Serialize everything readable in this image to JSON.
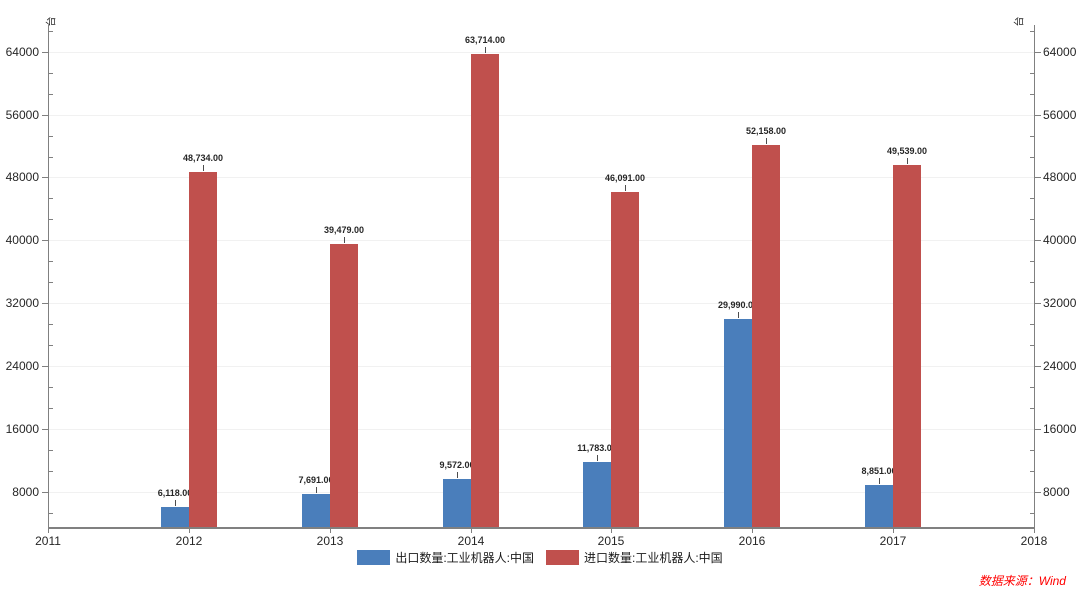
{
  "chart": {
    "unit_label_left": "台",
    "unit_label_right": "台",
    "source_note": "数据来源：Wind"
  },
  "legend": {
    "items": [
      {
        "label": "出口数量:工业机器人:中国",
        "color": "#4a7ebb"
      },
      {
        "label": "进口数量:工业机器人:中国",
        "color": "#c0504d"
      }
    ]
  },
  "chart_data": {
    "type": "bar",
    "categories": [
      "2012",
      "2013",
      "2014",
      "2015",
      "2016",
      "2017"
    ],
    "series": [
      {
        "name": "出口数量:工业机器人:中国",
        "color": "#4a7ebb",
        "values": [
          6118,
          7691,
          9572,
          11783,
          29990,
          8851
        ],
        "labels": [
          "6,118.00",
          "7,691.00",
          "9,572.00",
          "11,783.00",
          "29,990.00",
          "8,851.00"
        ]
      },
      {
        "name": "进口数量:工业机器人:中国",
        "color": "#c0504d",
        "values": [
          48734,
          39479,
          63714,
          46091,
          52158,
          49539
        ],
        "labels": [
          "48,734.00",
          "39,479.00",
          "63,714.00",
          "46,091.00",
          "52,158.00",
          "49,539.00"
        ]
      }
    ],
    "xlabel": "",
    "ylabel": "台",
    "x_axis": {
      "min": 2011,
      "max": 2018,
      "ticks": [
        "2011",
        "2012",
        "2013",
        "2014",
        "2015",
        "2016",
        "2017",
        "2018"
      ]
    },
    "y_axis": {
      "min": 3400,
      "max": 67400,
      "major_ticks": [
        8000,
        16000,
        24000,
        32000,
        40000,
        48000,
        56000,
        64000
      ],
      "major_step": 8000,
      "minor_divisions": 3
    },
    "grid": true,
    "legend_position": "bottom",
    "dual_y_axis": true
  }
}
